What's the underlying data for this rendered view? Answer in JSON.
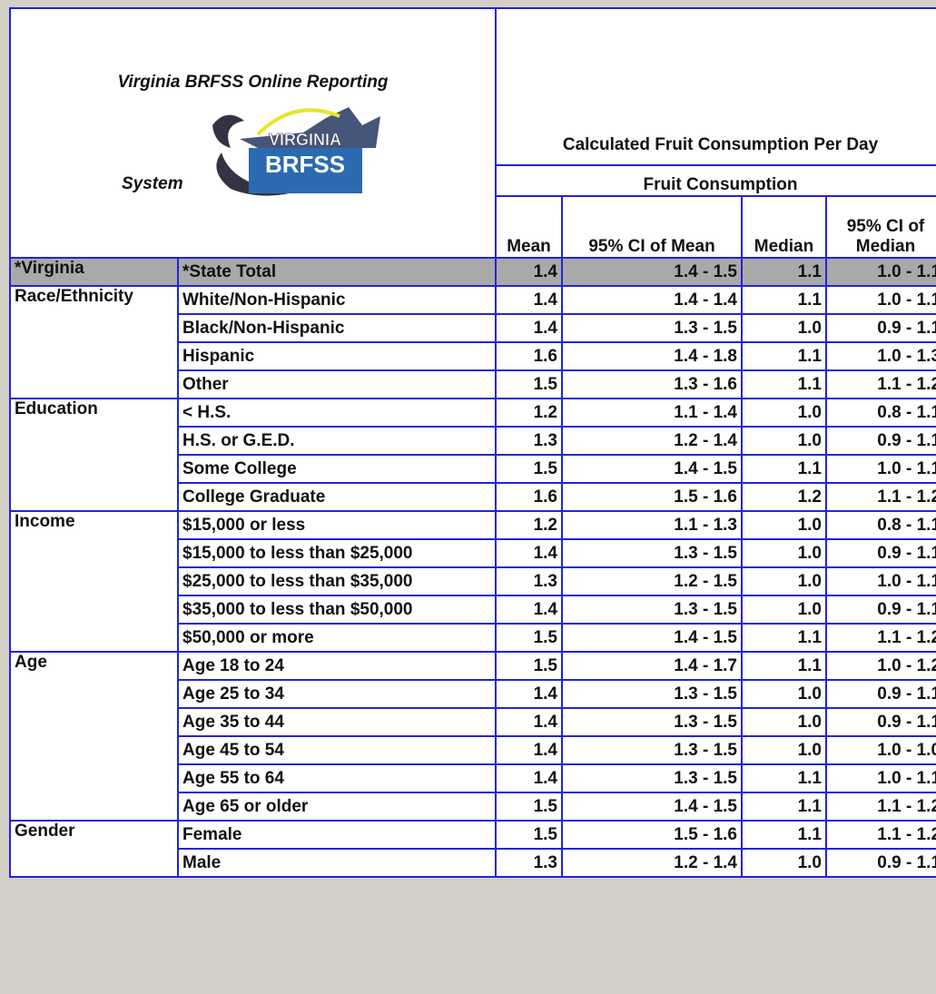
{
  "header": {
    "title_top": "Virginia BRFSS Online Reporting",
    "title_bottom": "System",
    "logo": {
      "top": "VIRGINIA",
      "main": "BRFSS"
    },
    "measure": "Calculated Fruit Consumption Per Day",
    "submeasure": "Fruit Consumption",
    "columns": [
      "Mean",
      "95% CI of Mean",
      "Median",
      "95% CI of Median"
    ]
  },
  "table": {
    "groups": [
      {
        "name": "*Virginia",
        "rows": [
          [
            "*State Total",
            "1.4",
            "1.4 - 1.5",
            "1.1",
            "1.0 - 1.1"
          ]
        ]
      },
      {
        "name": "Race/Ethnicity",
        "rows": [
          [
            "White/Non-Hispanic",
            "1.4",
            "1.4 - 1.4",
            "1.1",
            "1.0 - 1.1"
          ],
          [
            "Black/Non-Hispanic",
            "1.4",
            "1.3 - 1.5",
            "1.0",
            "0.9 - 1.1"
          ],
          [
            "Hispanic",
            "1.6",
            "1.4 - 1.8",
            "1.1",
            "1.0 - 1.3"
          ],
          [
            "Other",
            "1.5",
            "1.3 - 1.6",
            "1.1",
            "1.1 - 1.2"
          ]
        ]
      },
      {
        "name": "Education",
        "rows": [
          [
            "< H.S.",
            "1.2",
            "1.1 - 1.4",
            "1.0",
            "0.8 - 1.1"
          ],
          [
            "H.S. or G.E.D.",
            "1.3",
            "1.2 - 1.4",
            "1.0",
            "0.9 - 1.1"
          ],
          [
            "Some College",
            "1.5",
            "1.4 - 1.5",
            "1.1",
            "1.0 - 1.1"
          ],
          [
            "College Graduate",
            "1.6",
            "1.5 - 1.6",
            "1.2",
            "1.1 - 1.2"
          ]
        ]
      },
      {
        "name": "Income",
        "rows": [
          [
            "$15,000 or less",
            "1.2",
            "1.1 - 1.3",
            "1.0",
            "0.8 - 1.1"
          ],
          [
            "$15,000 to less than $25,000",
            "1.4",
            "1.3 - 1.5",
            "1.0",
            "0.9 - 1.1"
          ],
          [
            "$25,000 to less than $35,000",
            "1.3",
            "1.2 - 1.5",
            "1.0",
            "1.0 - 1.1"
          ],
          [
            "$35,000 to less than $50,000",
            "1.4",
            "1.3 - 1.5",
            "1.0",
            "0.9 - 1.1"
          ],
          [
            "$50,000 or more",
            "1.5",
            "1.4 - 1.5",
            "1.1",
            "1.1 - 1.2"
          ]
        ]
      },
      {
        "name": "Age",
        "rows": [
          [
            "Age 18 to 24",
            "1.5",
            "1.4 - 1.7",
            "1.1",
            "1.0 - 1.2"
          ],
          [
            "Age 25 to 34",
            "1.4",
            "1.3 - 1.5",
            "1.0",
            "0.9 - 1.1"
          ],
          [
            "Age 35 to 44",
            "1.4",
            "1.3 - 1.5",
            "1.0",
            "0.9 - 1.1"
          ],
          [
            "Age 45 to 54",
            "1.4",
            "1.3 - 1.5",
            "1.0",
            "1.0 - 1.0"
          ],
          [
            "Age 55 to 64",
            "1.4",
            "1.3 - 1.5",
            "1.1",
            "1.0 - 1.1"
          ],
          [
            "Age 65 or older",
            "1.5",
            "1.4 - 1.5",
            "1.1",
            "1.1 - 1.2"
          ]
        ]
      },
      {
        "name": "Gender",
        "rows": [
          [
            "Female",
            "1.5",
            "1.5 - 1.6",
            "1.1",
            "1.1 - 1.2"
          ],
          [
            "Male",
            "1.3",
            "1.2 - 1.4",
            "1.0",
            "0.9 - 1.1"
          ]
        ]
      }
    ]
  }
}
